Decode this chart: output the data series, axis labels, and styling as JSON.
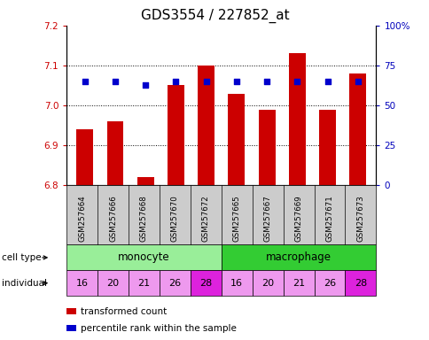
{
  "title": "GDS3554 / 227852_at",
  "samples": [
    "GSM257664",
    "GSM257666",
    "GSM257668",
    "GSM257670",
    "GSM257672",
    "GSM257665",
    "GSM257667",
    "GSM257669",
    "GSM257671",
    "GSM257673"
  ],
  "transformed_counts": [
    6.94,
    6.96,
    6.82,
    7.05,
    7.1,
    7.03,
    6.99,
    7.13,
    6.99,
    7.08
  ],
  "percentile_ranks": [
    65,
    65,
    63,
    65,
    65,
    65,
    65,
    65,
    65,
    65
  ],
  "ylim_left": [
    6.8,
    7.2
  ],
  "ylim_right": [
    0,
    100
  ],
  "yticks_left": [
    6.8,
    6.9,
    7.0,
    7.1,
    7.2
  ],
  "yticks_right": [
    0,
    25,
    50,
    75,
    100
  ],
  "ytick_labels_right": [
    "0",
    "25",
    "50",
    "75",
    "100%"
  ],
  "bar_color": "#cc0000",
  "dot_color": "#0000cc",
  "bar_bottom": 6.8,
  "individuals": [
    "16",
    "20",
    "21",
    "26",
    "28",
    "16",
    "20",
    "21",
    "26",
    "28"
  ],
  "monocyte_color": "#99ee99",
  "macrophage_color": "#33cc33",
  "individual_colors_light": "#ee99ee",
  "individual_colors_dark": "#dd22dd",
  "individual_dark_indices": [
    4,
    9
  ],
  "legend_bar_label": "transformed count",
  "legend_dot_label": "percentile rank within the sample",
  "title_fontsize": 11,
  "axis_color_left": "#cc0000",
  "axis_color_right": "#0000bb",
  "sample_label_bg": "#cccccc"
}
